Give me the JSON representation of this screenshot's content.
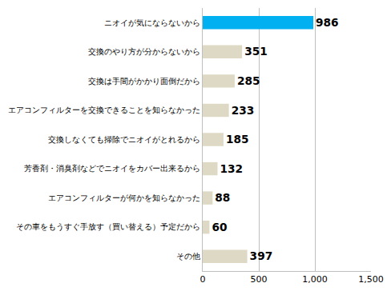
{
  "chart_data": {
    "type": "bar",
    "orientation": "horizontal",
    "categories": [
      "ニオイが気にならないから",
      "交換のやり方が分からないから",
      "交換は手間がかかり面倒だから",
      "エアコンフィルターを交換できることを知らなかった",
      "交換しなくても掃除でニオイがとれるから",
      "芳香剤・消臭剤などでニオイをカバー出来るから",
      "エアコンフィルターが何かを知らなかった",
      "その車をもうすぐ手放す（買い替える）予定だから",
      "その他"
    ],
    "values": [
      986,
      351,
      285,
      233,
      185,
      132,
      88,
      60,
      397
    ],
    "colors": [
      "#00b0f0",
      "#ddd9c4",
      "#ddd9c4",
      "#ddd9c4",
      "#ddd9c4",
      "#ddd9c4",
      "#ddd9c4",
      "#ddd9c4",
      "#ddd9c4"
    ],
    "xlim": [
      0,
      1500
    ],
    "xticks": [
      0,
      500,
      {
        "value": 1000,
        "label": "1,000"
      },
      {
        "value": 1500,
        "label": "1,500"
      }
    ],
    "grid": true,
    "data_labels": true
  }
}
